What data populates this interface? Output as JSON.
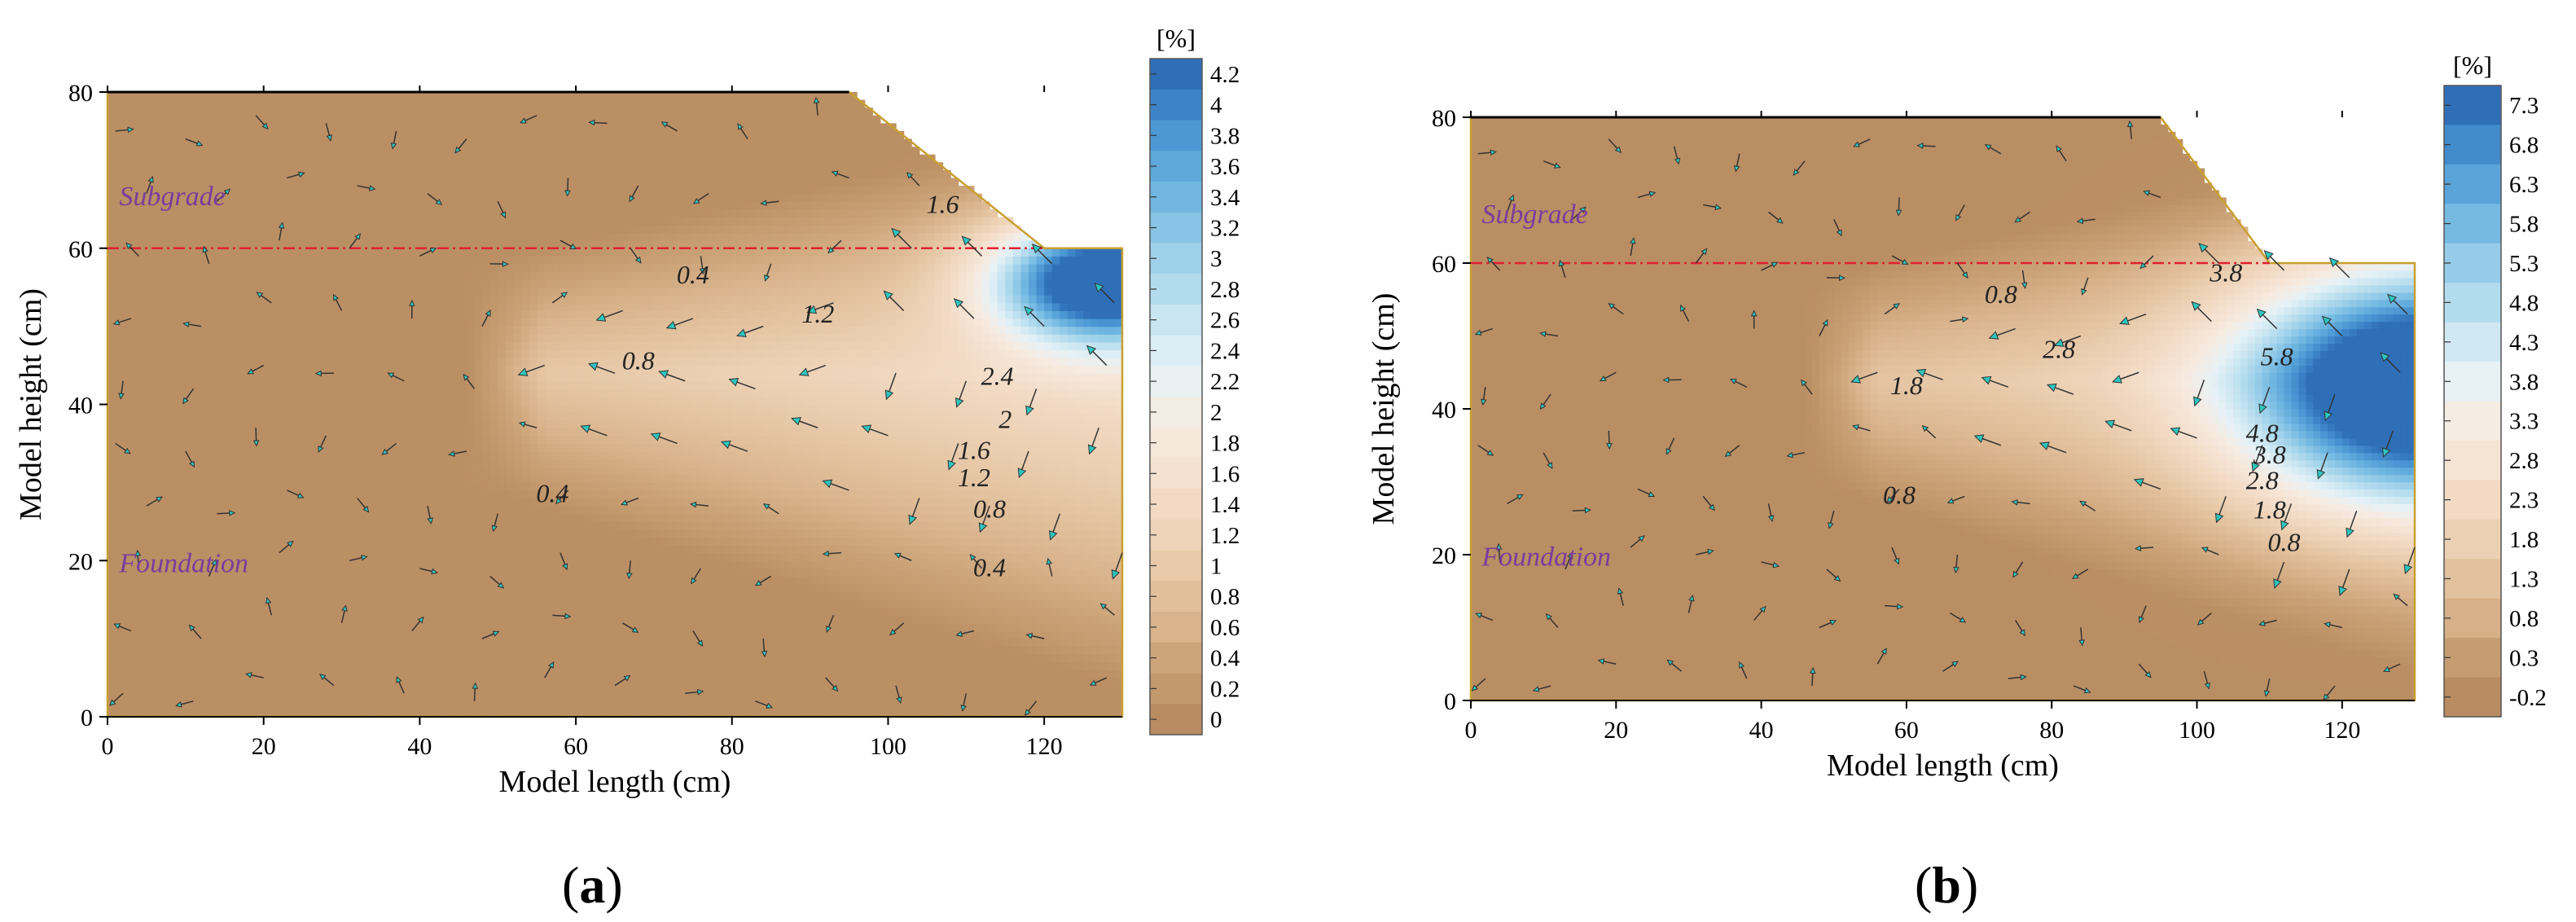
{
  "chart_data": [
    {
      "type": "contour",
      "panel_label": "a",
      "xlabel": "Model length (cm)",
      "ylabel": "Model height (cm)",
      "xlim": [
        0,
        130
      ],
      "ylim": [
        0,
        80
      ],
      "xticks": [
        "0",
        "20",
        "40",
        "60",
        "80",
        "100",
        "120"
      ],
      "yticks": [
        "0",
        "20",
        "40",
        "60",
        "80"
      ],
      "colorbar_unit": "[%]",
      "colorbar_levels": [
        "4.2",
        "4",
        "3.8",
        "3.6",
        "3.4",
        "3.2",
        "3",
        "2.8",
        "2.6",
        "2.4",
        "2.2",
        "2",
        "1.8",
        "1.6",
        "1.4",
        "1.2",
        "1",
        "0.8",
        "0.6",
        "0.4",
        "0.2",
        "0"
      ],
      "colorbar_values": [
        4.2,
        4.0,
        3.8,
        3.6,
        3.4,
        3.2,
        3.0,
        2.8,
        2.6,
        2.4,
        2.2,
        2.0,
        1.8,
        1.6,
        1.4,
        1.2,
        1.0,
        0.8,
        0.6,
        0.4,
        0.2,
        0.0
      ],
      "max_value": 4.3,
      "region_labels": [
        "Subgrade",
        "Foundation"
      ],
      "layer_boundary_height": 60,
      "geometry": {
        "crest_top": [
          [
            0,
            80
          ],
          [
            95,
            80
          ]
        ],
        "slope": [
          [
            95,
            80
          ],
          [
            120,
            60
          ]
        ],
        "berm": [
          [
            120,
            60
          ],
          [
            130,
            60
          ]
        ]
      },
      "contour_labels": [
        {
          "text": "0.4",
          "x": 75,
          "y": 55.5
        },
        {
          "text": "0.8",
          "x": 68,
          "y": 44.5
        },
        {
          "text": "1.2",
          "x": 91,
          "y": 50.5
        },
        {
          "text": "1.6",
          "x": 107,
          "y": 64.5
        },
        {
          "text": "2.4",
          "x": 114,
          "y": 42.5
        },
        {
          "text": "2",
          "x": 115,
          "y": 37
        },
        {
          "text": "1.6",
          "x": 111,
          "y": 33
        },
        {
          "text": "1.2",
          "x": 111,
          "y": 29.5
        },
        {
          "text": "0.8",
          "x": 113,
          "y": 25.5
        },
        {
          "text": "0.4",
          "x": 57,
          "y": 27.5
        },
        {
          "text": "0.4",
          "x": 113,
          "y": 18
        }
      ],
      "centers": [
        {
          "x": 128,
          "y": 56,
          "amp": 4.3,
          "sx": 10,
          "sy": 5.5
        }
      ],
      "plume_value": 1.5
    },
    {
      "type": "contour",
      "panel_label": "b",
      "xlabel": "Model length (cm)",
      "ylabel": "Model height (cm)",
      "xlim": [
        0,
        130
      ],
      "ylim": [
        0,
        80
      ],
      "xticks": [
        "0",
        "20",
        "40",
        "60",
        "80",
        "100",
        "120"
      ],
      "yticks": [
        "0",
        "20",
        "40",
        "60",
        "80"
      ],
      "colorbar_unit": "[%]",
      "colorbar_levels": [
        "7.3",
        "6.8",
        "6.3",
        "5.8",
        "5.3",
        "4.8",
        "4.3",
        "3.8",
        "3.3",
        "2.8",
        "2.3",
        "1.8",
        "1.3",
        "0.8",
        "0.3",
        "-0.2"
      ],
      "colorbar_values": [
        7.3,
        6.8,
        6.3,
        5.8,
        5.3,
        4.8,
        4.3,
        3.8,
        3.3,
        2.8,
        2.3,
        1.8,
        1.3,
        0.8,
        0.3,
        -0.2
      ],
      "max_value": 7.6,
      "region_labels": [
        "Subgrade",
        "Foundation"
      ],
      "layer_boundary_height": 60,
      "geometry": {
        "crest_top": [
          [
            0,
            80
          ],
          [
            95,
            80
          ]
        ],
        "slope": [
          [
            95,
            80
          ],
          [
            110,
            60
          ]
        ],
        "berm": [
          [
            110,
            60
          ],
          [
            130,
            60
          ]
        ]
      },
      "contour_labels": [
        {
          "text": "0.8",
          "x": 73,
          "y": 54.5
        },
        {
          "text": "1.8",
          "x": 60,
          "y": 42
        },
        {
          "text": "2.8",
          "x": 81,
          "y": 47
        },
        {
          "text": "3.8",
          "x": 104,
          "y": 57.5
        },
        {
          "text": "5.8",
          "x": 111,
          "y": 46
        },
        {
          "text": "4.8",
          "x": 109,
          "y": 35.5
        },
        {
          "text": "3.8",
          "x": 110,
          "y": 32.5
        },
        {
          "text": "2.8",
          "x": 109,
          "y": 29
        },
        {
          "text": "1.8",
          "x": 110,
          "y": 25
        },
        {
          "text": "0.8",
          "x": 112,
          "y": 20.5
        },
        {
          "text": "0.8",
          "x": 59,
          "y": 27
        }
      ],
      "centers": [
        {
          "x": 131,
          "y": 43,
          "amp": 7.6,
          "sx": 17,
          "sy": 11
        }
      ],
      "plume_value": 2.6
    }
  ]
}
